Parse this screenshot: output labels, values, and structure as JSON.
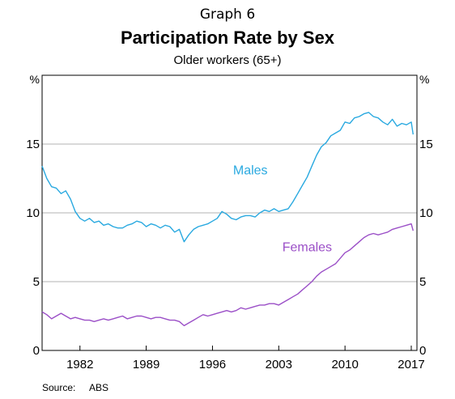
{
  "header": {
    "graph_label": "Graph 6",
    "title": "Participation Rate by Sex",
    "subtitle": "Older workers (65+)"
  },
  "source": {
    "label": "Source:",
    "value": "ABS"
  },
  "chart_data": {
    "type": "line",
    "title": "Participation Rate by Sex",
    "subtitle": "Older workers (65+)",
    "y_unit_left": "%",
    "y_unit_right": "%",
    "ylim": [
      0,
      20
    ],
    "xlim": [
      1978.0,
      2017.6
    ],
    "yticks": [
      0,
      5,
      10,
      15
    ],
    "xticks": [
      1982,
      1989,
      1996,
      2003,
      2010,
      2017
    ],
    "grid": true,
    "colors": {
      "Males": "#29a9e0",
      "Females": "#9b4fc7"
    },
    "series": [
      {
        "name": "Males",
        "x": [
          1978.0,
          1978.5,
          1979.0,
          1979.5,
          1980.0,
          1980.5,
          1981.0,
          1981.5,
          1982.0,
          1982.5,
          1983.0,
          1983.5,
          1984.0,
          1984.5,
          1985.0,
          1985.5,
          1986.0,
          1986.5,
          1987.0,
          1987.5,
          1988.0,
          1988.5,
          1989.0,
          1989.5,
          1990.0,
          1990.5,
          1991.0,
          1991.5,
          1992.0,
          1992.5,
          1993.0,
          1993.5,
          1994.0,
          1994.5,
          1995.0,
          1995.5,
          1996.0,
          1996.5,
          1997.0,
          1997.5,
          1998.0,
          1998.5,
          1999.0,
          1999.5,
          2000.0,
          2000.5,
          2001.0,
          2001.5,
          2002.0,
          2002.5,
          2003.0,
          2003.5,
          2004.0,
          2004.5,
          2005.0,
          2005.5,
          2006.0,
          2006.5,
          2007.0,
          2007.5,
          2008.0,
          2008.5,
          2009.0,
          2009.5,
          2010.0,
          2010.5,
          2011.0,
          2011.5,
          2012.0,
          2012.5,
          2013.0,
          2013.5,
          2014.0,
          2014.5,
          2015.0,
          2015.5,
          2016.0,
          2016.5,
          2017.0,
          2017.2
        ],
        "values": [
          13.4,
          12.5,
          11.9,
          11.8,
          11.4,
          11.6,
          11.0,
          10.1,
          9.6,
          9.4,
          9.6,
          9.3,
          9.4,
          9.1,
          9.2,
          9.0,
          8.9,
          8.9,
          9.1,
          9.2,
          9.4,
          9.3,
          9.0,
          9.2,
          9.1,
          8.9,
          9.1,
          9.0,
          8.6,
          8.8,
          7.9,
          8.4,
          8.8,
          9.0,
          9.1,
          9.2,
          9.4,
          9.6,
          10.1,
          9.9,
          9.6,
          9.5,
          9.7,
          9.8,
          9.8,
          9.7,
          10.0,
          10.2,
          10.1,
          10.3,
          10.1,
          10.2,
          10.3,
          10.8,
          11.4,
          12.0,
          12.6,
          13.4,
          14.2,
          14.8,
          15.1,
          15.6,
          15.8,
          16.0,
          16.6,
          16.5,
          16.9,
          17.0,
          17.2,
          17.3,
          17.0,
          16.9,
          16.6,
          16.4,
          16.8,
          16.3,
          16.5,
          16.4,
          16.6,
          15.7
        ]
      },
      {
        "name": "Females",
        "x": [
          1978.0,
          1978.5,
          1979.0,
          1979.5,
          1980.0,
          1980.5,
          1981.0,
          1981.5,
          1982.0,
          1982.5,
          1983.0,
          1983.5,
          1984.0,
          1984.5,
          1985.0,
          1985.5,
          1986.0,
          1986.5,
          1987.0,
          1987.5,
          1988.0,
          1988.5,
          1989.0,
          1989.5,
          1990.0,
          1990.5,
          1991.0,
          1991.5,
          1992.0,
          1992.5,
          1993.0,
          1993.5,
          1994.0,
          1994.5,
          1995.0,
          1995.5,
          1996.0,
          1996.5,
          1997.0,
          1997.5,
          1998.0,
          1998.5,
          1999.0,
          1999.5,
          2000.0,
          2000.5,
          2001.0,
          2001.5,
          2002.0,
          2002.5,
          2003.0,
          2003.5,
          2004.0,
          2004.5,
          2005.0,
          2005.5,
          2006.0,
          2006.5,
          2007.0,
          2007.5,
          2008.0,
          2008.5,
          2009.0,
          2009.5,
          2010.0,
          2010.5,
          2011.0,
          2011.5,
          2012.0,
          2012.5,
          2013.0,
          2013.5,
          2014.0,
          2014.5,
          2015.0,
          2015.5,
          2016.0,
          2016.5,
          2017.0,
          2017.2
        ],
        "values": [
          2.8,
          2.6,
          2.3,
          2.5,
          2.7,
          2.5,
          2.3,
          2.4,
          2.3,
          2.2,
          2.2,
          2.1,
          2.2,
          2.3,
          2.2,
          2.3,
          2.4,
          2.5,
          2.3,
          2.4,
          2.5,
          2.5,
          2.4,
          2.3,
          2.4,
          2.4,
          2.3,
          2.2,
          2.2,
          2.1,
          1.8,
          2.0,
          2.2,
          2.4,
          2.6,
          2.5,
          2.6,
          2.7,
          2.8,
          2.9,
          2.8,
          2.9,
          3.1,
          3.0,
          3.1,
          3.2,
          3.3,
          3.3,
          3.4,
          3.4,
          3.3,
          3.5,
          3.7,
          3.9,
          4.1,
          4.4,
          4.7,
          5.0,
          5.4,
          5.7,
          5.9,
          6.1,
          6.3,
          6.7,
          7.1,
          7.3,
          7.6,
          7.9,
          8.2,
          8.4,
          8.5,
          8.4,
          8.5,
          8.6,
          8.8,
          8.9,
          9.0,
          9.1,
          9.2,
          8.7
        ]
      }
    ],
    "annotations": [
      {
        "text": "Males",
        "series": "Males",
        "x": 2000.0,
        "y": 12.8
      },
      {
        "text": "Females",
        "series": "Females",
        "x": 2006.0,
        "y": 7.2
      }
    ]
  }
}
